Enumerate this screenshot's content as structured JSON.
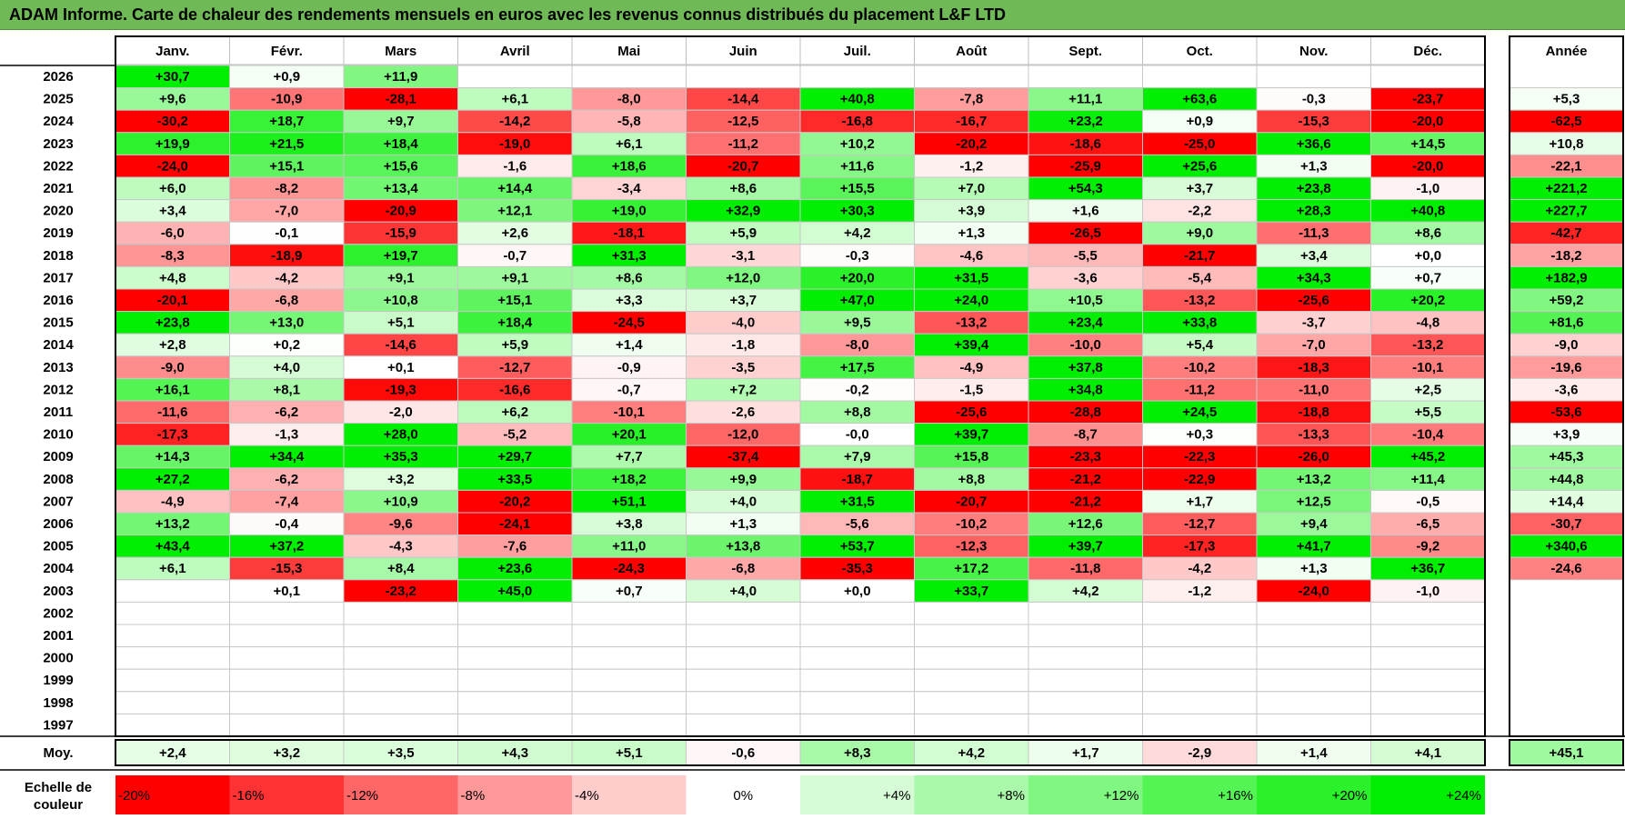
{
  "title": "ADAM Informe. Carte de chaleur des rendements mensuels en euros avec les revenus connus distribués du placement L&F LTD",
  "chart_data": {
    "type": "heatmap",
    "months": [
      "Janv.",
      "Févr.",
      "Mars",
      "Avril",
      "Mai",
      "Juin",
      "Juil.",
      "Août",
      "Sept.",
      "Oct.",
      "Nov.",
      "Déc."
    ],
    "year_column_label": "Année",
    "years": [
      "2026",
      "2025",
      "2024",
      "2023",
      "2022",
      "2021",
      "2020",
      "2019",
      "2018",
      "2017",
      "2016",
      "2015",
      "2014",
      "2013",
      "2012",
      "2011",
      "2010",
      "2009",
      "2008",
      "2007",
      "2006",
      "2005",
      "2004",
      "2003",
      "2002",
      "2001",
      "2000",
      "1999",
      "1998",
      "1997"
    ],
    "values": [
      [
        "+30,7",
        "+0,9",
        "+11,9",
        "",
        "",
        "",
        "",
        "",
        "",
        "",
        "",
        ""
      ],
      [
        "+9,6",
        "-10,9",
        "-28,1",
        "+6,1",
        "-8,0",
        "-14,4",
        "+40,8",
        "-7,8",
        "+11,1",
        "+63,6",
        "-0,3",
        "-23,7"
      ],
      [
        "-30,2",
        "+18,7",
        "+9,7",
        "-14,2",
        "-5,8",
        "-12,5",
        "-16,8",
        "-16,7",
        "+23,2",
        "+0,9",
        "-15,3",
        "-20,0"
      ],
      [
        "+19,9",
        "+21,5",
        "+18,4",
        "-19,0",
        "+6,1",
        "-11,2",
        "+10,2",
        "-20,2",
        "-18,6",
        "-25,0",
        "+36,6",
        "+14,5"
      ],
      [
        "-24,0",
        "+15,1",
        "+15,6",
        "-1,6",
        "+18,6",
        "-20,7",
        "+11,6",
        "-1,2",
        "-25,9",
        "+25,6",
        "+1,3",
        "-20,0"
      ],
      [
        "+6,0",
        "-8,2",
        "+13,4",
        "+14,4",
        "-3,4",
        "+8,6",
        "+15,5",
        "+7,0",
        "+54,3",
        "+3,7",
        "+23,8",
        "-1,0"
      ],
      [
        "+3,4",
        "-7,0",
        "-20,9",
        "+12,1",
        "+19,0",
        "+32,9",
        "+30,3",
        "+3,9",
        "+1,6",
        "-2,2",
        "+28,3",
        "+40,8"
      ],
      [
        "-6,0",
        "-0,1",
        "-15,9",
        "+2,6",
        "-18,1",
        "+5,9",
        "+4,2",
        "+1,3",
        "-26,5",
        "+9,0",
        "-11,3",
        "+8,6"
      ],
      [
        "-8,3",
        "-18,9",
        "+19,7",
        "-0,7",
        "+31,3",
        "-3,1",
        "-0,3",
        "-4,6",
        "-5,5",
        "-21,7",
        "+3,4",
        "+0,0"
      ],
      [
        "+4,8",
        "-4,2",
        "+9,1",
        "+9,1",
        "+8,6",
        "+12,0",
        "+20,0",
        "+31,5",
        "-3,6",
        "-5,4",
        "+34,3",
        "+0,7"
      ],
      [
        "-20,1",
        "-6,8",
        "+10,8",
        "+15,1",
        "+3,3",
        "+3,7",
        "+47,0",
        "+24,0",
        "+10,5",
        "-13,2",
        "-25,6",
        "+20,2"
      ],
      [
        "+23,8",
        "+13,0",
        "+5,1",
        "+18,4",
        "-24,5",
        "-4,0",
        "+9,5",
        "-13,2",
        "+23,4",
        "+33,8",
        "-3,7",
        "-4,8"
      ],
      [
        "+2,8",
        "+0,2",
        "-14,6",
        "+5,9",
        "+1,4",
        "-1,8",
        "-8,0",
        "+39,4",
        "-10,0",
        "+5,4",
        "-7,0",
        "-13,2"
      ],
      [
        "-9,0",
        "+4,0",
        "+0,1",
        "-12,7",
        "-0,9",
        "-3,5",
        "+17,5",
        "-4,9",
        "+37,8",
        "-10,2",
        "-18,3",
        "-10,1"
      ],
      [
        "+16,1",
        "+8,1",
        "-19,3",
        "-16,6",
        "-0,7",
        "+7,2",
        "-0,2",
        "-1,5",
        "+34,8",
        "-11,2",
        "-11,0",
        "+2,5"
      ],
      [
        "-11,6",
        "-6,2",
        "-2,0",
        "+6,2",
        "-10,1",
        "-2,6",
        "+8,8",
        "-25,6",
        "-28,8",
        "+24,5",
        "-18,8",
        "+5,5"
      ],
      [
        "-17,3",
        "-1,3",
        "+28,0",
        "-5,2",
        "+20,1",
        "-12,0",
        "-0,0",
        "+39,7",
        "-8,7",
        "+0,3",
        "-13,3",
        "-10,4"
      ],
      [
        "+14,3",
        "+34,4",
        "+35,3",
        "+29,7",
        "+7,7",
        "-37,4",
        "+7,9",
        "+15,8",
        "-23,3",
        "-22,3",
        "-26,0",
        "+45,2"
      ],
      [
        "+27,2",
        "-6,2",
        "+3,2",
        "+33,5",
        "+18,2",
        "+9,9",
        "-18,7",
        "+8,8",
        "-21,2",
        "-22,9",
        "+13,2",
        "+11,4"
      ],
      [
        "-4,9",
        "-7,4",
        "+10,9",
        "-20,2",
        "+51,1",
        "+4,0",
        "+31,5",
        "-20,7",
        "-21,2",
        "+1,7",
        "+12,5",
        "-0,5"
      ],
      [
        "+13,2",
        "-0,4",
        "-9,6",
        "-24,1",
        "+3,8",
        "+1,3",
        "-5,6",
        "-10,2",
        "+12,6",
        "-12,7",
        "+9,4",
        "-6,5"
      ],
      [
        "+43,4",
        "+37,2",
        "-4,3",
        "-7,6",
        "+11,0",
        "+13,8",
        "+53,7",
        "-12,3",
        "+39,7",
        "-17,3",
        "+41,7",
        "-9,2"
      ],
      [
        "+6,1",
        "-15,3",
        "+8,4",
        "+23,6",
        "-24,3",
        "-6,8",
        "-35,3",
        "+17,2",
        "-11,8",
        "-4,2",
        "+1,3",
        "+36,7"
      ],
      [
        "",
        "+0,1",
        "-23,2",
        "+45,0",
        "+0,7",
        "+4,0",
        "+0,0",
        "+33,7",
        "+4,2",
        "-1,2",
        "-24,0",
        "-1,0"
      ],
      [
        "",
        "",
        "",
        "",
        "",
        "",
        "",
        "",
        "",
        "",
        "",
        ""
      ],
      [
        "",
        "",
        "",
        "",
        "",
        "",
        "",
        "",
        "",
        "",
        "",
        ""
      ],
      [
        "",
        "",
        "",
        "",
        "",
        "",
        "",
        "",
        "",
        "",
        "",
        ""
      ],
      [
        "",
        "",
        "",
        "",
        "",
        "",
        "",
        "",
        "",
        "",
        "",
        ""
      ],
      [
        "",
        "",
        "",
        "",
        "",
        "",
        "",
        "",
        "",
        "",
        "",
        ""
      ],
      [
        "",
        "",
        "",
        "",
        "",
        "",
        "",
        "",
        "",
        "",
        "",
        ""
      ]
    ],
    "annual": [
      "",
      "+5,3",
      "-62,5",
      "+10,8",
      "-22,1",
      "+221,2",
      "+227,7",
      "-42,7",
      "-18,2",
      "+182,9",
      "+59,2",
      "+81,6",
      "-9,0",
      "-19,6",
      "-3,6",
      "-53,6",
      "+3,9",
      "+45,3",
      "+44,8",
      "+14,4",
      "-30,7",
      "+340,6",
      "-24,6",
      "",
      "",
      "",
      "",
      "",
      "",
      ""
    ],
    "average_label": "Moy.",
    "averages": [
      "+2,4",
      "+3,2",
      "+3,5",
      "+4,3",
      "+5,1",
      "-0,6",
      "+8,3",
      "+4,2",
      "+1,7",
      "-2,9",
      "+1,4",
      "+4,1"
    ],
    "average_annual": "+45,1",
    "scale_label": "Echelle de couleur",
    "scale": [
      "-20%",
      "-16%",
      "-12%",
      "-8%",
      "-4%",
      "0%",
      "+4%",
      "+8%",
      "+12%",
      "+16%",
      "+20%",
      "+24%"
    ],
    "scale_values": [
      -20,
      -16,
      -12,
      -8,
      -4,
      0,
      4,
      8,
      12,
      16,
      20,
      24
    ],
    "colors": {
      "negative": "#ff0000",
      "positive": "#00ee00",
      "neutral": "#ffffff"
    }
  }
}
